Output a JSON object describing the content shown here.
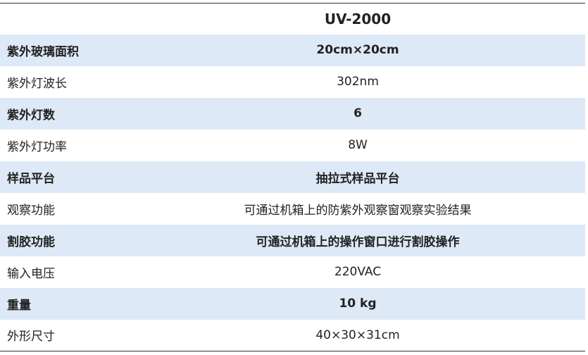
{
  "header": {
    "title": "UV-2000"
  },
  "table": {
    "rows": [
      [
        "紫外玻璃面积",
        "20cm×20cm"
      ],
      [
        "紫外灯波长",
        "302nm"
      ],
      [
        "紫外灯数",
        "6"
      ],
      [
        "紫外灯功率",
        "8W"
      ],
      [
        "样品平台",
        "抽拉式样品平台"
      ],
      [
        "观察功能",
        "可通过机箱上的防紫外观察窗观察实验结果"
      ],
      [
        "割胶功能",
        "可通过机箱上的操作窗口进行割胶操作"
      ],
      [
        "输入电压",
        "220VAC"
      ],
      [
        "重量",
        "10 kg"
      ],
      [
        "外形尺寸",
        "40×30×31cm"
      ]
    ]
  }
}
